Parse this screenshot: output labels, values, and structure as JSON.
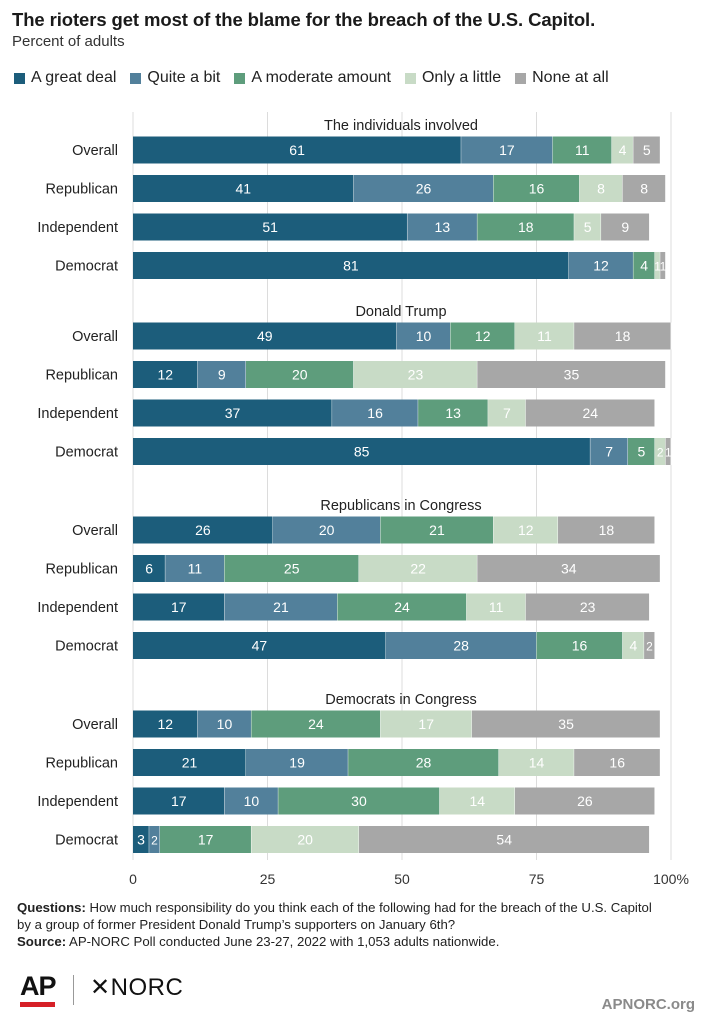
{
  "title": "The rioters get most of the blame for the breach of the U.S. Capitol.",
  "subtitle": "Percent of adults",
  "colors": {
    "great_deal": "#1c5d7b",
    "quite_bit": "#52809b",
    "moderate": "#5e9d7c",
    "little": "#c8dbc6",
    "none": "#a7a7a7",
    "label_dark": "#ffffff",
    "label_light": "#ffffff"
  },
  "legend": [
    {
      "label": "A great deal",
      "color": "#1c5d7b"
    },
    {
      "label": "Quite a bit",
      "color": "#52809b"
    },
    {
      "label": "A moderate amount",
      "color": "#5e9d7c"
    },
    {
      "label": "Only a little",
      "color": "#c8dbc6"
    },
    {
      "label": "None at all",
      "color": "#a7a7a7"
    }
  ],
  "chart_data": {
    "type": "bar",
    "orientation": "horizontal",
    "stacked": true,
    "series_names": [
      "A great deal",
      "Quite a bit",
      "A moderate amount",
      "Only a little",
      "None at all"
    ],
    "xlim": [
      0,
      100
    ],
    "xticks": [
      "0",
      "25",
      "50",
      "75",
      "100%"
    ],
    "groups": [
      {
        "title": "The individuals involved",
        "rows": [
          {
            "label": "Overall",
            "values": [
              61,
              17,
              11,
              4,
              5
            ]
          },
          {
            "label": "Republican",
            "values": [
              41,
              26,
              16,
              8,
              8
            ]
          },
          {
            "label": "Independent",
            "values": [
              51,
              13,
              18,
              5,
              9
            ]
          },
          {
            "label": "Democrat",
            "values": [
              81,
              12,
              4,
              1,
              1
            ]
          }
        ]
      },
      {
        "title": "Donald Trump",
        "rows": [
          {
            "label": "Overall",
            "values": [
              49,
              10,
              12,
              11,
              18
            ]
          },
          {
            "label": "Republican",
            "values": [
              12,
              9,
              20,
              23,
              35
            ]
          },
          {
            "label": "Independent",
            "values": [
              37,
              16,
              13,
              7,
              24
            ]
          },
          {
            "label": "Democrat",
            "values": [
              85,
              7,
              5,
              2,
              1
            ]
          }
        ]
      },
      {
        "title": "Republicans in Congress",
        "rows": [
          {
            "label": "Overall",
            "values": [
              26,
              20,
              21,
              12,
              18
            ]
          },
          {
            "label": "Republican",
            "values": [
              6,
              11,
              25,
              22,
              34
            ]
          },
          {
            "label": "Independent",
            "values": [
              17,
              21,
              24,
              11,
              23
            ]
          },
          {
            "label": "Democrat",
            "values": [
              47,
              28,
              16,
              4,
              2
            ]
          }
        ]
      },
      {
        "title": "Democrats in Congress",
        "rows": [
          {
            "label": "Overall",
            "values": [
              12,
              10,
              24,
              17,
              35
            ]
          },
          {
            "label": "Republican",
            "values": [
              21,
              19,
              28,
              14,
              16
            ]
          },
          {
            "label": "Independent",
            "values": [
              17,
              10,
              30,
              14,
              26
            ]
          },
          {
            "label": "Democrat",
            "values": [
              3,
              2,
              17,
              20,
              54
            ]
          }
        ]
      }
    ]
  },
  "footnote": {
    "questions_label": "Questions:",
    "questions_text": "How much responsibility do you think each of the following had for the breach of the U.S. Capitol by a group of former President Donald Trump’s supporters on January 6th?",
    "source_label": "Source:",
    "source_text": "AP-NORC Poll conducted June 23-27, 2022 with 1,053 adults nationwide."
  },
  "logos": {
    "ap": "AP",
    "norc": "NORC"
  },
  "site": "APNORC.org"
}
